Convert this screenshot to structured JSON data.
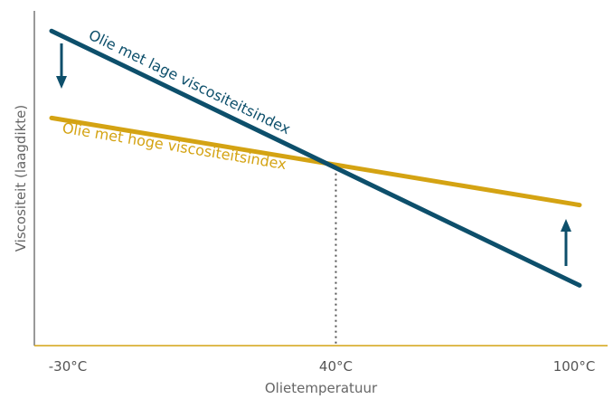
{
  "chart_data": {
    "type": "line",
    "title": "",
    "xlabel": "Olietemperatuur",
    "ylabel": "Viscositeit (laagdikte)",
    "x_ticks": [
      "-30°C",
      "40°C",
      "100°C"
    ],
    "x_tick_values": [
      -30,
      40,
      100
    ],
    "xlim": [
      -30,
      100
    ],
    "ylim": [
      0,
      100
    ],
    "grid": false,
    "legend": "none",
    "crossover_x": 40,
    "series": [
      {
        "name": "Olie met lage viscositeitsindex",
        "color": "#0d4f6b",
        "x": [
          -30,
          100
        ],
        "y": [
          94,
          18
        ]
      },
      {
        "name": "Olie met hoge viscositeitsindex",
        "color": "#d4a313",
        "x": [
          -30,
          100
        ],
        "y": [
          68,
          42
        ]
      }
    ],
    "arrows": [
      {
        "x": -30,
        "direction": "down",
        "color": "#0d4f6b"
      },
      {
        "x": 100,
        "direction": "up",
        "color": "#0d4f6b"
      }
    ]
  }
}
